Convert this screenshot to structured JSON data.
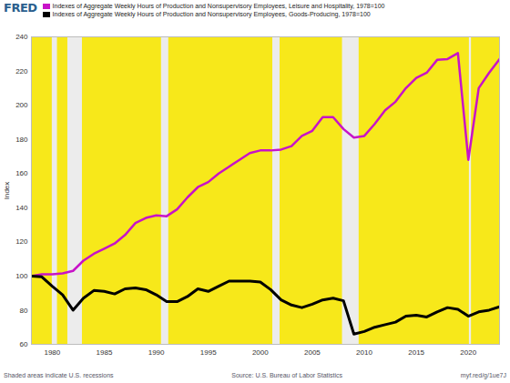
{
  "chart_data": {
    "type": "line",
    "logo": "FRED",
    "x": [
      1978,
      1979,
      1980,
      1981,
      1982,
      1983,
      1984,
      1985,
      1986,
      1987,
      1988,
      1989,
      1990,
      1991,
      1992,
      1993,
      1994,
      1995,
      1996,
      1997,
      1998,
      1999,
      2000,
      2001,
      2002,
      2003,
      2004,
      2005,
      2006,
      2007,
      2008,
      2009,
      2010,
      2011,
      2012,
      2013,
      2014,
      2015,
      2016,
      2017,
      2018,
      2019,
      2020,
      2021,
      2022,
      2023
    ],
    "series": [
      {
        "name": "Indexes of Aggregate Weekly Hours of Production and Nonsupervisory Employees, Leisure and Hospitality, 1978=100",
        "color": "#c813c8",
        "values": [
          100,
          101,
          101,
          101.5,
          103,
          109,
          113,
          116,
          119,
          124,
          131,
          134,
          135.5,
          135,
          139,
          146,
          152,
          155,
          160,
          164,
          168,
          172,
          173.5,
          173.5,
          174,
          176,
          182,
          185,
          193,
          193,
          186,
          181,
          182,
          189,
          197,
          202,
          210,
          216,
          219,
          226.5,
          227,
          230.5,
          168,
          210,
          219,
          227
        ]
      },
      {
        "name": "Indexes of Aggregate Weekly Hours of Production and Nonsupervisory Employees, Goods-Producing, 1978=100",
        "color": "#000000",
        "values": [
          100,
          99.5,
          94,
          89,
          80,
          87,
          91.5,
          91,
          89.5,
          92.5,
          93,
          92,
          89,
          85,
          85,
          88,
          92.5,
          91,
          94,
          97,
          97,
          97,
          96.5,
          92,
          86,
          83,
          81.5,
          83.5,
          86,
          87,
          85.5,
          66,
          67.5,
          70,
          71.5,
          73,
          76.5,
          77,
          76,
          79,
          81.5,
          80.5,
          76.5,
          79,
          80,
          82
        ]
      }
    ],
    "xlim": [
      1978,
      2023
    ],
    "xticks": [
      1980,
      1985,
      1990,
      1995,
      2000,
      2005,
      2010,
      2015,
      2020
    ],
    "ylim": [
      60,
      240
    ],
    "yticks": [
      60,
      80,
      100,
      120,
      140,
      160,
      180,
      200,
      220,
      240
    ],
    "y_label": "Index",
    "recessions": [
      [
        1980.0,
        1980.5
      ],
      [
        1981.5,
        1982.9
      ],
      [
        1990.5,
        1991.2
      ],
      [
        2001.2,
        2001.9
      ],
      [
        2007.9,
        2009.5
      ],
      [
        2020.1,
        2020.3
      ]
    ],
    "recessions_note": "Shaded areas indicate U.S. recessions",
    "source": "Source: U.S. Bureau of Labor Statistics",
    "url": "myf.red/g/1ue7J",
    "grid": false,
    "legend": "top"
  }
}
